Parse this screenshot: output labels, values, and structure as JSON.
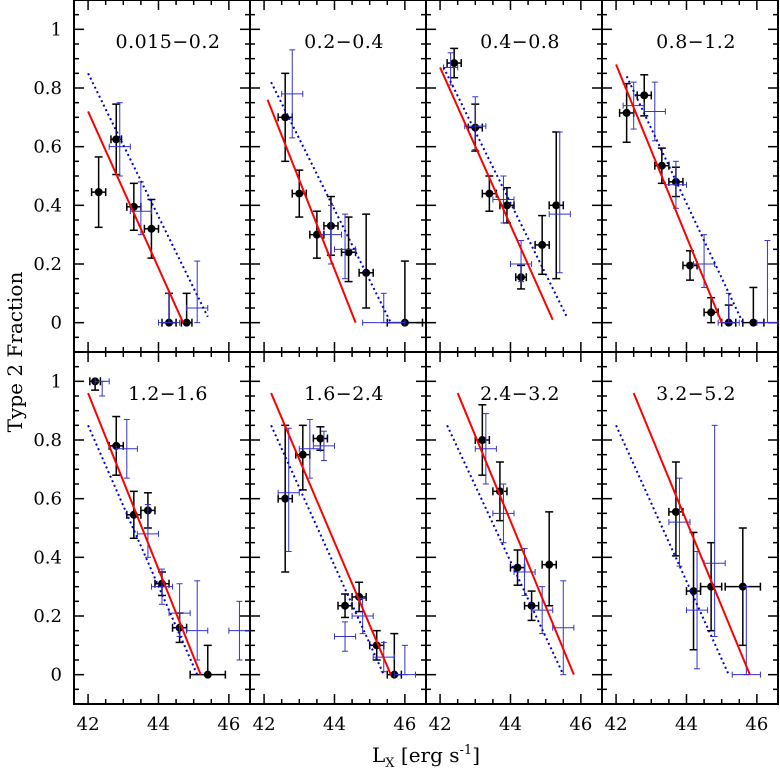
{
  "figure": {
    "ylabel": "Type 2 Fraction",
    "xlabel_main": "L",
    "xlabel_sub": "X",
    "xlabel_units_pre": " [erg s",
    "xlabel_units_exp": "-1",
    "xlabel_units_post": "]",
    "x_ticks": [
      "42",
      "44",
      "46"
    ],
    "y_ticks": [
      "0",
      "0.2",
      "0.4",
      "0.6",
      "0.8",
      "1"
    ]
  },
  "colors": {
    "black_points": "#000000",
    "blue_points": "#3333cc",
    "fit_line": "#ff0000",
    "reference_line": "#0000cc"
  },
  "chart_data": [
    {
      "type": "scatter",
      "title": "0.015−0.2",
      "xlim": [
        41.6,
        46.6
      ],
      "ylim": [
        -0.1,
        1.1
      ],
      "series": [
        {
          "style": "black",
          "points": [
            [
              42.3,
              0.445,
              0.2,
              0.12,
              0.12
            ],
            [
              42.8,
              0.625,
              0.15,
              0.12,
              0.12
            ],
            [
              43.3,
              0.395,
              0.2,
              0.08,
              0.08
            ],
            [
              43.8,
              0.32,
              0.2,
              0.1,
              0.1
            ],
            [
              44.3,
              0.0,
              0.2,
              0.0,
              0.1
            ],
            [
              44.8,
              0.0,
              0.15,
              0.0,
              0.1
            ]
          ]
        },
        {
          "style": "blue",
          "points": [
            [
              42.9,
              0.6,
              0.3,
              0.1,
              0.15
            ],
            [
              43.5,
              0.38,
              0.3,
              0.08,
              0.1
            ],
            [
              44.3,
              0.0,
              0.3,
              0.0,
              0.1
            ],
            [
              45.1,
              0.05,
              0.3,
              0.05,
              0.16
            ]
          ]
        },
        {
          "style": "fit",
          "line": [
            [
              42.0,
              0.72
            ],
            [
              44.7,
              0.0
            ]
          ]
        },
        {
          "style": "ref",
          "line": [
            [
              42.0,
              0.85
            ],
            [
              45.4,
              0.02
            ]
          ]
        }
      ]
    },
    {
      "type": "scatter",
      "title": "0.2−0.4",
      "xlim": [
        41.6,
        46.6
      ],
      "ylim": [
        -0.1,
        1.1
      ],
      "series": [
        {
          "style": "black",
          "points": [
            [
              42.6,
              0.7,
              0.2,
              0.15,
              0.15
            ],
            [
              43.0,
              0.44,
              0.2,
              0.08,
              0.08
            ],
            [
              43.5,
              0.3,
              0.2,
              0.08,
              0.08
            ],
            [
              43.9,
              0.33,
              0.2,
              0.1,
              0.1
            ],
            [
              44.4,
              0.24,
              0.2,
              0.1,
              0.12
            ],
            [
              44.9,
              0.17,
              0.2,
              0.12,
              0.2
            ],
            [
              46.0,
              0.0,
              0.5,
              0.0,
              0.21
            ]
          ]
        },
        {
          "style": "blue",
          "points": [
            [
              42.8,
              0.78,
              0.3,
              0.15,
              0.15
            ],
            [
              43.9,
              0.3,
              0.3,
              0.1,
              0.1
            ],
            [
              44.3,
              0.25,
              0.3,
              0.1,
              0.12
            ],
            [
              45.4,
              0.0,
              0.6,
              0.0,
              0.1
            ]
          ]
        },
        {
          "style": "fit",
          "line": [
            [
              42.1,
              0.76
            ],
            [
              44.6,
              0.0
            ]
          ]
        },
        {
          "style": "ref",
          "line": [
            [
              42.2,
              0.82
            ],
            [
              45.6,
              0.0
            ]
          ]
        }
      ]
    },
    {
      "type": "scatter",
      "title": "0.4−0.8",
      "xlim": [
        41.6,
        46.6
      ],
      "ylim": [
        -0.1,
        1.1
      ],
      "series": [
        {
          "style": "black",
          "points": [
            [
              42.4,
              0.885,
              0.2,
              0.05,
              0.05
            ],
            [
              43.0,
              0.665,
              0.2,
              0.08,
              0.08
            ],
            [
              43.4,
              0.44,
              0.2,
              0.06,
              0.06
            ],
            [
              43.9,
              0.4,
              0.2,
              0.06,
              0.06
            ],
            [
              44.3,
              0.155,
              0.15,
              0.04,
              0.04
            ],
            [
              44.9,
              0.265,
              0.2,
              0.1,
              0.1
            ],
            [
              45.3,
              0.4,
              0.2,
              0.25,
              0.25
            ]
          ]
        },
        {
          "style": "blue",
          "points": [
            [
              42.3,
              0.87,
              0.2,
              0.06,
              0.05
            ],
            [
              43.0,
              0.67,
              0.3,
              0.08,
              0.1
            ],
            [
              43.8,
              0.42,
              0.3,
              0.08,
              0.08
            ],
            [
              44.3,
              0.2,
              0.3,
              0.06,
              0.08
            ],
            [
              45.4,
              0.37,
              0.3,
              0.2,
              0.28
            ]
          ]
        },
        {
          "style": "fit",
          "line": [
            [
              42.0,
              0.87
            ],
            [
              45.2,
              0.01
            ]
          ]
        },
        {
          "style": "ref",
          "line": [
            [
              42.1,
              0.87
            ],
            [
              45.6,
              0.02
            ]
          ]
        }
      ]
    },
    {
      "type": "scatter",
      "title": "0.8−1.2",
      "xlim": [
        41.6,
        46.6
      ],
      "ylim": [
        -0.1,
        1.1
      ],
      "series": [
        {
          "style": "black",
          "points": [
            [
              42.3,
              0.715,
              0.2,
              0.1,
              0.1
            ],
            [
              42.8,
              0.775,
              0.2,
              0.07,
              0.07
            ],
            [
              43.3,
              0.535,
              0.2,
              0.06,
              0.06
            ],
            [
              43.7,
              0.48,
              0.2,
              0.05,
              0.05
            ],
            [
              44.1,
              0.195,
              0.2,
              0.05,
              0.05
            ],
            [
              44.7,
              0.035,
              0.2,
              0.035,
              0.05
            ],
            [
              45.2,
              0.0,
              0.2,
              0.0,
              0.06
            ],
            [
              45.9,
              0.0,
              0.3,
              0.0,
              0.12
            ]
          ]
        },
        {
          "style": "blue",
          "points": [
            [
              42.5,
              0.74,
              0.3,
              0.08,
              0.08
            ],
            [
              43.1,
              0.72,
              0.3,
              0.1,
              0.1
            ],
            [
              43.7,
              0.47,
              0.3,
              0.08,
              0.08
            ],
            [
              44.5,
              0.2,
              0.3,
              0.08,
              0.1
            ],
            [
              45.2,
              0.0,
              0.3,
              0.0,
              0.1
            ],
            [
              46.3,
              0.0,
              0.3,
              0.0,
              0.28
            ]
          ]
        },
        {
          "style": "fit",
          "line": [
            [
              42.0,
              0.88
            ],
            [
              45.0,
              0.0
            ]
          ]
        },
        {
          "style": "ref",
          "line": [
            [
              42.3,
              0.84
            ],
            [
              45.6,
              0.0
            ]
          ]
        }
      ]
    },
    {
      "type": "scatter",
      "title": "1.2−1.6",
      "xlim": [
        41.6,
        46.6
      ],
      "ylim": [
        -0.1,
        1.1
      ],
      "series": [
        {
          "style": "black",
          "points": [
            [
              42.2,
              1.0,
              0.15,
              0.03,
              0.0
            ],
            [
              42.8,
              0.78,
              0.2,
              0.1,
              0.1
            ],
            [
              43.3,
              0.545,
              0.2,
              0.08,
              0.08
            ],
            [
              43.7,
              0.56,
              0.2,
              0.06,
              0.06
            ],
            [
              44.1,
              0.31,
              0.2,
              0.04,
              0.04
            ],
            [
              44.6,
              0.16,
              0.2,
              0.05,
              0.05
            ],
            [
              45.4,
              0.0,
              0.5,
              0.0,
              0.1
            ]
          ]
        },
        {
          "style": "blue",
          "points": [
            [
              42.4,
              1.0,
              0.2,
              0.05,
              0.0
            ],
            [
              43.1,
              0.77,
              0.3,
              0.1,
              0.1
            ],
            [
              43.7,
              0.48,
              0.3,
              0.08,
              0.1
            ],
            [
              44.1,
              0.3,
              0.3,
              0.06,
              0.06
            ],
            [
              44.6,
              0.21,
              0.3,
              0.08,
              0.1
            ],
            [
              45.1,
              0.15,
              0.3,
              0.1,
              0.17
            ],
            [
              46.3,
              0.15,
              0.3,
              0.1,
              0.1
            ]
          ]
        },
        {
          "style": "fit",
          "line": [
            [
              42.0,
              0.96
            ],
            [
              45.2,
              0.0
            ]
          ]
        },
        {
          "style": "ref",
          "line": [
            [
              42.0,
              0.85
            ],
            [
              45.1,
              0.0
            ]
          ]
        }
      ]
    },
    {
      "type": "scatter",
      "title": "1.6−2.4",
      "xlim": [
        41.6,
        46.6
      ],
      "ylim": [
        -0.1,
        1.1
      ],
      "series": [
        {
          "style": "black",
          "points": [
            [
              42.6,
              0.6,
              0.2,
              0.25,
              0.25
            ],
            [
              43.1,
              0.75,
              0.2,
              0.12,
              0.1
            ],
            [
              43.6,
              0.805,
              0.2,
              0.04,
              0.04
            ],
            [
              44.3,
              0.235,
              0.2,
              0.04,
              0.04
            ],
            [
              44.7,
              0.265,
              0.2,
              0.05,
              0.05
            ],
            [
              45.2,
              0.1,
              0.2,
              0.05,
              0.05
            ],
            [
              45.7,
              0.0,
              0.2,
              0.0,
              0.14
            ]
          ]
        },
        {
          "style": "blue",
          "points": [
            [
              42.7,
              0.62,
              0.3,
              0.2,
              0.22
            ],
            [
              43.3,
              0.77,
              0.3,
              0.1,
              0.1
            ],
            [
              43.7,
              0.78,
              0.3,
              0.05,
              0.05
            ],
            [
              44.3,
              0.13,
              0.3,
              0.05,
              0.05
            ],
            [
              44.8,
              0.2,
              0.3,
              0.06,
              0.06
            ],
            [
              45.4,
              0.06,
              0.3,
              0.05,
              0.05
            ],
            [
              46.0,
              0.0,
              0.3,
              0.0,
              0.1
            ]
          ]
        },
        {
          "style": "fit",
          "line": [
            [
              42.2,
              0.96
            ],
            [
              45.6,
              0.0
            ]
          ]
        },
        {
          "style": "ref",
          "line": [
            [
              42.2,
              0.85
            ],
            [
              45.4,
              0.0
            ]
          ]
        }
      ]
    },
    {
      "type": "scatter",
      "title": "2.4−3.2",
      "xlim": [
        41.6,
        46.6
      ],
      "ylim": [
        -0.1,
        1.1
      ],
      "series": [
        {
          "style": "black",
          "points": [
            [
              43.2,
              0.8,
              0.2,
              0.12,
              0.12
            ],
            [
              43.7,
              0.625,
              0.2,
              0.1,
              0.1
            ],
            [
              44.2,
              0.365,
              0.2,
              0.06,
              0.06
            ],
            [
              44.6,
              0.235,
              0.2,
              0.05,
              0.05
            ],
            [
              45.1,
              0.375,
              0.2,
              0.14,
              0.18
            ]
          ]
        },
        {
          "style": "blue",
          "points": [
            [
              43.3,
              0.77,
              0.3,
              0.12,
              0.12
            ],
            [
              43.8,
              0.55,
              0.3,
              0.1,
              0.1
            ],
            [
              44.4,
              0.35,
              0.3,
              0.08,
              0.08
            ],
            [
              44.9,
              0.22,
              0.3,
              0.08,
              0.08
            ],
            [
              45.5,
              0.16,
              0.3,
              0.16,
              0.16
            ]
          ]
        },
        {
          "style": "fit",
          "line": [
            [
              42.5,
              0.96
            ],
            [
              45.8,
              0.0
            ]
          ]
        },
        {
          "style": "ref",
          "line": [
            [
              42.2,
              0.85
            ],
            [
              45.5,
              0.0
            ]
          ]
        }
      ]
    },
    {
      "type": "scatter",
      "title": "3.2−5.2",
      "xlim": [
        41.6,
        46.6
      ],
      "ylim": [
        -0.1,
        1.1
      ],
      "series": [
        {
          "style": "black",
          "points": [
            [
              43.7,
              0.555,
              0.2,
              0.15,
              0.17
            ],
            [
              44.2,
              0.285,
              0.2,
              0.2,
              0.2
            ],
            [
              44.7,
              0.3,
              0.3,
              0.15,
              0.15
            ],
            [
              45.6,
              0.3,
              0.5,
              0.2,
              0.2
            ]
          ]
        },
        {
          "style": "blue",
          "points": [
            [
              43.8,
              0.52,
              0.3,
              0.15,
              0.15
            ],
            [
              44.3,
              0.22,
              0.3,
              0.2,
              0.2
            ],
            [
              44.8,
              0.38,
              0.3,
              0.25,
              0.47
            ],
            [
              45.7,
              0.0,
              0.4,
              0.0,
              0.3
            ]
          ]
        },
        {
          "style": "fit",
          "line": [
            [
              42.5,
              0.96
            ],
            [
              45.8,
              0.0
            ]
          ]
        },
        {
          "style": "ref",
          "line": [
            [
              42.0,
              0.85
            ],
            [
              45.2,
              0.0
            ]
          ]
        }
      ]
    }
  ]
}
